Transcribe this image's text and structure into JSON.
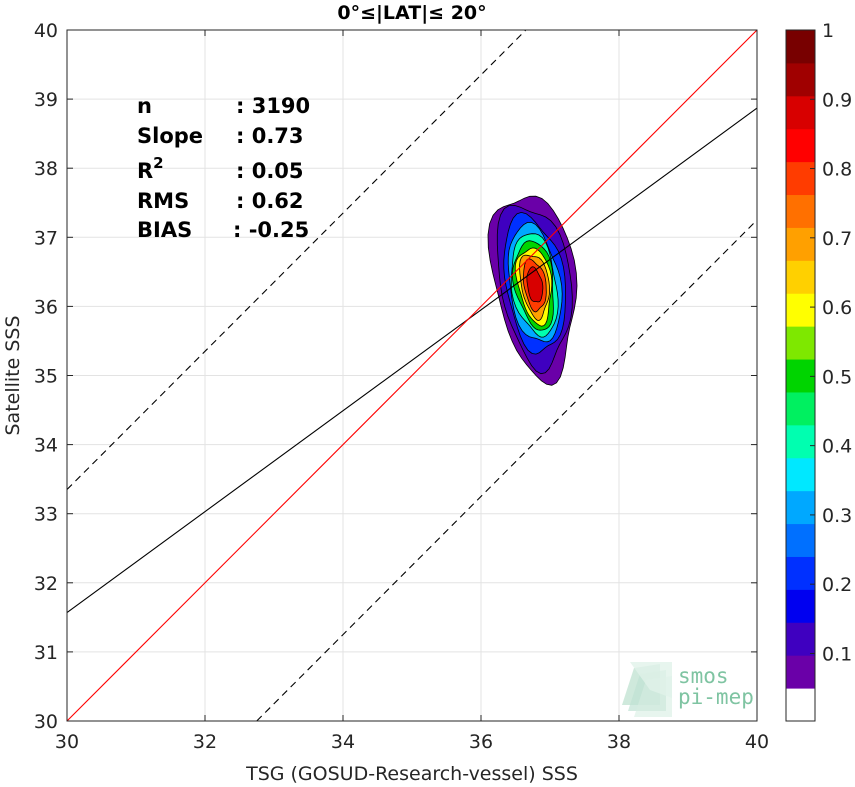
{
  "chart_data": {
    "type": "contour",
    "title": "0°≤|LAT|≤ 20°",
    "xlabel": "TSG (GOSUD-Research-vessel) SSS",
    "ylabel": "Satellite SSS",
    "xlim": [
      30,
      40
    ],
    "ylim": [
      30,
      40
    ],
    "xticks": [
      "30",
      "32",
      "34",
      "36",
      "38",
      "40"
    ],
    "yticks": [
      "30",
      "31",
      "32",
      "33",
      "34",
      "35",
      "36",
      "37",
      "38",
      "39",
      "40"
    ],
    "grid": true,
    "stats": [
      {
        "label": "n",
        "value": ": 3190"
      },
      {
        "label": "Slope",
        "value": ": 0.73"
      },
      {
        "label": "R",
        "sup": "2",
        "value": ": 0.05"
      },
      {
        "label": "RMS",
        "value": ": 0.62"
      },
      {
        "label": "BIAS",
        "value": ": -0.25"
      }
    ],
    "lines": {
      "identity": {
        "slope": 1,
        "intercept": 0,
        "color": "#ff0000"
      },
      "fit": {
        "slope": 0.73,
        "intercept": 9.67,
        "color": "#000000"
      },
      "upper": {
        "slope": 1,
        "intercept": 3.35,
        "color": "#000000",
        "dashed": true
      },
      "lower": {
        "slope": 1,
        "intercept": -2.75,
        "color": "#000000",
        "dashed": true
      }
    },
    "density": {
      "peak_x": 36.78,
      "peak_y": 36.3,
      "sx": 0.24,
      "sy": 0.55
    },
    "contour_levels": [
      0.05,
      0.1,
      0.2,
      0.3,
      0.4,
      0.5,
      0.6,
      0.7,
      0.8,
      0.9,
      1.0
    ],
    "colorbar": {
      "ticks": [
        "0.1",
        "0.2",
        "0.3",
        "0.4",
        "0.5",
        "0.6",
        "0.7",
        "0.8",
        "0.9",
        "1"
      ],
      "colors": [
        "#ffffff",
        "#6a00a8",
        "#3f00c0",
        "#0000f0",
        "#0030ff",
        "#0070ff",
        "#00a8ff",
        "#00e8ff",
        "#00ffb0",
        "#00f060",
        "#00d400",
        "#7ee800",
        "#ffff00",
        "#ffd000",
        "#ffa000",
        "#ff7000",
        "#ff3c00",
        "#ff0000",
        "#d80000",
        "#a00000",
        "#780000"
      ]
    },
    "logo": {
      "line1": "smos",
      "line2": "pi-mep"
    }
  }
}
